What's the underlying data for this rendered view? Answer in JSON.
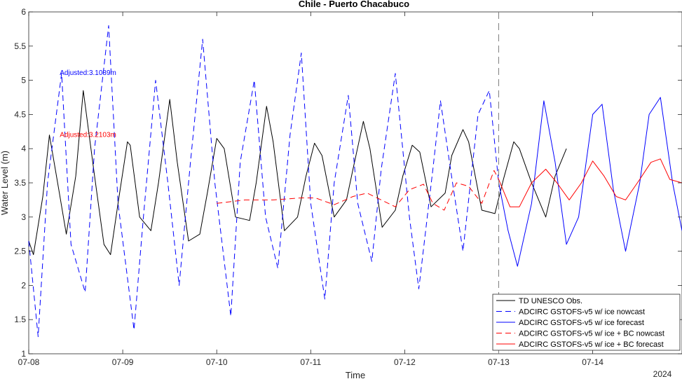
{
  "chart_data": {
    "type": "line",
    "title": "Chile - Puerto Chacabuco",
    "xlabel": "Time",
    "ylabel": "Water Level (m)",
    "x_tick_labels": [
      "07-08",
      "07-09",
      "07-10",
      "07-11",
      "07-12",
      "07-13",
      "07-14"
    ],
    "year_label": "2024",
    "x_range_days": [
      0,
      6.95
    ],
    "ylim": [
      1,
      6
    ],
    "y_tick_labels": [
      "1",
      "1.5",
      "2",
      "2.5",
      "3",
      "3.5",
      "4",
      "4.5",
      "5",
      "5.5",
      "6"
    ],
    "grid": false,
    "forecast_start_marker": "07-13",
    "legend_position": "bottom-right",
    "colors": {
      "obs": "#000000",
      "no_bc": "#0000ff",
      "bc": "#ff0000",
      "divider": "#808080"
    },
    "series": [
      {
        "name": "TD UNESCO Obs.",
        "style": "solid",
        "color": "#000000",
        "x": [
          0.0,
          0.05,
          0.15,
          0.22,
          0.32,
          0.4,
          0.5,
          0.58,
          0.7,
          0.8,
          0.87,
          0.95,
          1.05,
          1.08,
          1.18,
          1.3,
          1.38,
          1.5,
          1.58,
          1.7,
          1.82,
          1.9,
          2.0,
          2.08,
          2.2,
          2.35,
          2.42,
          2.53,
          2.6,
          2.72,
          2.86,
          2.95,
          3.04,
          3.12,
          3.25,
          3.38,
          3.45,
          3.56,
          3.63,
          3.76,
          3.9,
          3.98,
          4.08,
          4.16,
          4.28,
          4.43,
          4.5,
          4.62,
          4.68,
          4.82,
          4.96,
          5.05,
          5.16,
          5.22,
          5.35,
          5.5,
          5.6,
          5.72
        ],
        "y": [
          2.65,
          2.45,
          3.3,
          4.2,
          3.4,
          2.75,
          3.6,
          4.85,
          3.6,
          2.6,
          2.45,
          3.2,
          4.1,
          4.05,
          3.0,
          2.8,
          3.5,
          4.72,
          3.8,
          2.65,
          2.75,
          3.35,
          4.15,
          4.0,
          3.0,
          2.95,
          3.5,
          4.62,
          4.1,
          2.8,
          3.0,
          3.6,
          4.08,
          3.9,
          3.0,
          3.25,
          3.7,
          4.4,
          4.0,
          2.85,
          3.1,
          3.6,
          4.05,
          3.95,
          3.15,
          3.35,
          3.9,
          4.28,
          4.1,
          3.1,
          3.05,
          3.55,
          4.1,
          4.0,
          3.5,
          3.0,
          3.6,
          4.0
        ]
      },
      {
        "name": "ADCIRC GSTOFS-v5 w/ ice nowcast",
        "style": "dashed",
        "color": "#0000ff",
        "x": [
          0.0,
          0.1,
          0.2,
          0.35,
          0.45,
          0.6,
          0.7,
          0.85,
          0.95,
          1.12,
          1.22,
          1.35,
          1.48,
          1.6,
          1.72,
          1.85,
          1.98,
          2.15,
          2.25,
          2.4,
          2.52,
          2.65,
          2.78,
          2.9,
          3.0,
          3.15,
          3.25,
          3.4,
          3.5,
          3.65,
          3.75,
          3.9,
          4.05,
          4.15,
          4.3,
          4.38,
          4.52,
          4.62,
          4.78,
          4.9,
          5.0
        ],
        "y": [
          2.65,
          1.25,
          3.5,
          5.1,
          2.6,
          1.9,
          4.0,
          5.8,
          3.2,
          1.35,
          3.0,
          5.0,
          3.5,
          2.0,
          3.8,
          5.6,
          3.5,
          1.55,
          3.8,
          5.0,
          3.0,
          2.25,
          4.2,
          5.4,
          3.2,
          1.8,
          3.5,
          4.78,
          3.2,
          2.35,
          3.7,
          5.1,
          3.0,
          1.95,
          3.7,
          4.7,
          3.4,
          2.5,
          4.5,
          4.85,
          3.5
        ]
      },
      {
        "name": "ADCIRC GSTOFS-v5 w/ ice forecast",
        "style": "solid",
        "color": "#0000ff",
        "x": [
          5.0,
          5.1,
          5.2,
          5.35,
          5.48,
          5.6,
          5.72,
          5.85,
          6.0,
          6.1,
          6.22,
          6.35,
          6.5,
          6.6,
          6.72,
          6.85,
          6.95
        ],
        "y": [
          3.5,
          2.8,
          2.28,
          3.2,
          4.7,
          3.8,
          2.6,
          3.0,
          4.5,
          4.65,
          3.4,
          2.5,
          3.5,
          4.5,
          4.75,
          3.5,
          2.8
        ]
      },
      {
        "name": "ADCIRC GSTOFS-v5 w/ ice + BC nowcast",
        "style": "dashed",
        "color": "#ff0000",
        "x": [
          2.0,
          2.3,
          2.6,
          2.9,
          3.05,
          3.25,
          3.45,
          3.6,
          3.75,
          3.9,
          4.05,
          4.2,
          4.3,
          4.42,
          4.55,
          4.68,
          4.82,
          4.95,
          5.0
        ],
        "y": [
          3.2,
          3.25,
          3.25,
          3.28,
          3.28,
          3.18,
          3.3,
          3.35,
          3.25,
          3.15,
          3.4,
          3.48,
          3.2,
          3.1,
          3.5,
          3.45,
          3.2,
          3.68,
          3.55
        ]
      },
      {
        "name": "ADCIRC GSTOFS-v5 w/ ice + BC forecast",
        "style": "solid",
        "color": "#ff0000",
        "x": [
          5.0,
          5.12,
          5.22,
          5.35,
          5.5,
          5.62,
          5.75,
          5.88,
          6.0,
          6.12,
          6.25,
          6.35,
          6.5,
          6.62,
          6.72,
          6.82,
          6.95
        ],
        "y": [
          3.55,
          3.15,
          3.15,
          3.5,
          3.7,
          3.5,
          3.25,
          3.5,
          3.82,
          3.6,
          3.3,
          3.25,
          3.55,
          3.8,
          3.85,
          3.55,
          3.5
        ]
      }
    ],
    "annotations": [
      {
        "text": "Adjusted:3.1089m",
        "color": "#0000ff",
        "x": 0.33,
        "y": 5.08
      },
      {
        "text": "Adjusted:3.2103m",
        "color": "#ff0000",
        "x": 0.33,
        "y": 4.17
      }
    ]
  }
}
